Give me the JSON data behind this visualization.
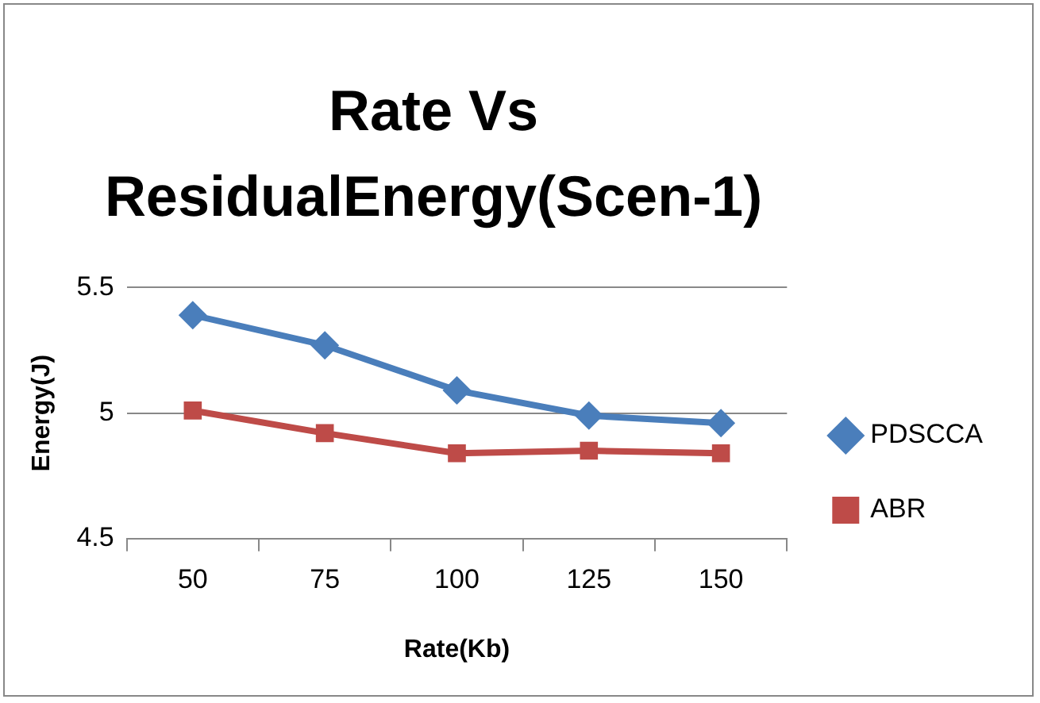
{
  "chart_data": {
    "type": "line",
    "title": "Rate Vs ResidualEnergy(Scen-1)",
    "xlabel": "Rate(Kb)",
    "ylabel": "Energy(J)",
    "categories": [
      "50",
      "75",
      "100",
      "125",
      "150"
    ],
    "series": [
      {
        "name": "PDSCCA",
        "color": "#4a7ebb",
        "marker": "diamond",
        "values": [
          5.39,
          5.27,
          5.09,
          4.99,
          4.96
        ]
      },
      {
        "name": "ABR",
        "color": "#be4b48",
        "marker": "square",
        "values": [
          5.01,
          4.92,
          4.84,
          4.85,
          4.84
        ]
      }
    ],
    "ylim": [
      4.5,
      5.5
    ],
    "yticks": [
      4.5,
      5,
      5.5
    ],
    "grid": "y",
    "legend": "right",
    "line_style": "solid"
  }
}
